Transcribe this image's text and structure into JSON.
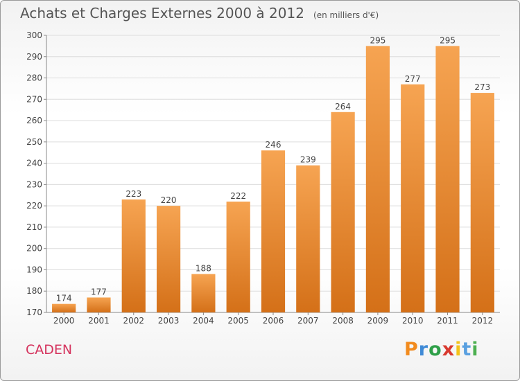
{
  "header": {
    "title": "Achats et Charges Externes 2000 à 2012",
    "subtitle": "(en milliers d'€)"
  },
  "footer": {
    "commune": "CADEN",
    "logo_letters": [
      "P",
      "r",
      "o",
      "x",
      "i",
      "t",
      "i"
    ]
  },
  "colors": {
    "bar_top": "#f6a452",
    "bar_bottom": "#d47018",
    "grid": "#dcdcdc",
    "commune_text": "#d5345e"
  },
  "chart_data": {
    "type": "bar",
    "title": "Achats et Charges Externes 2000 à 2012",
    "subtitle": "(en milliers d'€)",
    "categories": [
      "2000",
      "2001",
      "2002",
      "2003",
      "2004",
      "2005",
      "2006",
      "2007",
      "2008",
      "2009",
      "2010",
      "2011",
      "2012"
    ],
    "values": [
      174,
      177,
      223,
      220,
      188,
      222,
      246,
      239,
      264,
      295,
      277,
      295,
      273
    ],
    "ylim": [
      170,
      300
    ],
    "yticks": [
      170,
      180,
      190,
      200,
      210,
      220,
      230,
      240,
      250,
      260,
      270,
      280,
      290,
      300
    ],
    "grid": true,
    "data_labels": true
  }
}
